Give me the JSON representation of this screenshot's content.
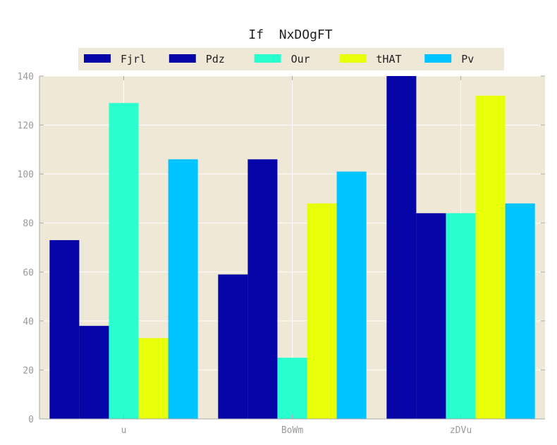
{
  "chart_data": {
    "type": "bar",
    "title": "If  NxDOgFT",
    "xlabel": "",
    "ylabel": "",
    "categories": [
      "u",
      "BoWm",
      "zDVu"
    ],
    "series": [
      {
        "name": "Fjrl",
        "values": [
          73,
          59,
          140
        ],
        "color": "#0505a8"
      },
      {
        "name": "Pdz",
        "values": [
          38,
          106,
          84
        ],
        "color": "#0505a8"
      },
      {
        "name": "Our",
        "values": [
          129,
          25,
          84
        ],
        "color": "#29ffce"
      },
      {
        "name": "tHAT",
        "values": [
          33,
          88,
          132
        ],
        "color": "#e8ff0a"
      },
      {
        "name": "Pv",
        "values": [
          106,
          101,
          88
        ],
        "color": "#00c4ff"
      }
    ],
    "ylim": [
      0,
      140
    ],
    "yticks": [
      0,
      20,
      40,
      60,
      80,
      100,
      120,
      140
    ],
    "grid": true,
    "legend_position": "top",
    "background": "#efe8d6"
  }
}
